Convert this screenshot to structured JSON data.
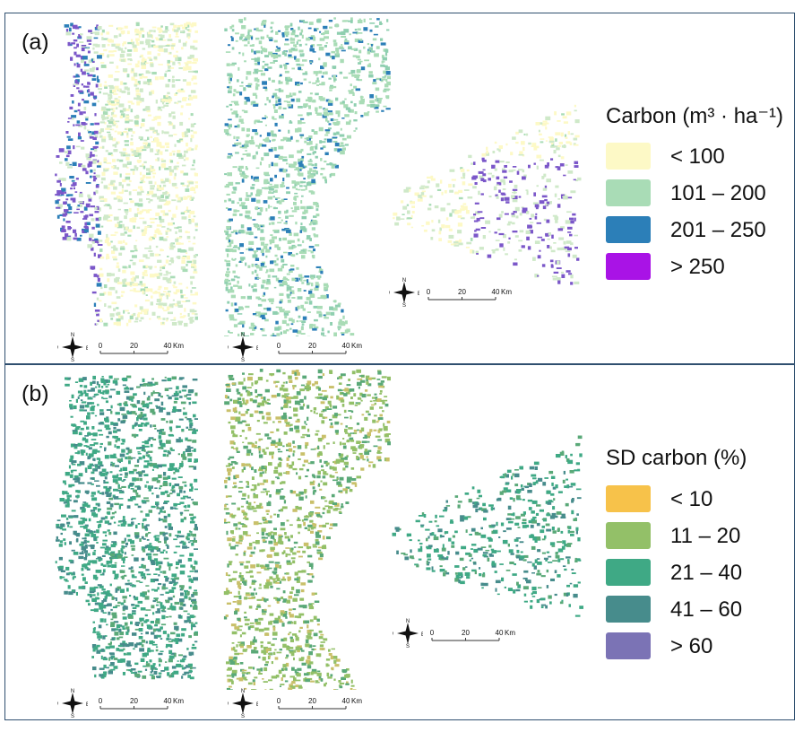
{
  "panels": [
    {
      "label": "(a)",
      "legend": {
        "title": "Carbon (m³ · ha⁻¹)",
        "classes": [
          {
            "label": "< 100",
            "color": "#fdf9c6"
          },
          {
            "label": "101 – 200",
            "color": "#a9dcb6"
          },
          {
            "label": "201 – 250",
            "color": "#2c7fb8"
          },
          {
            "label": "> 250",
            "color": "#a913e6"
          }
        ]
      },
      "map_colors": [
        "#fdf9c6",
        "#cfe9c9",
        "#a9dcb6",
        "#8fcfb0",
        "#2c7fb8",
        "#7b57c9"
      ]
    },
    {
      "label": "(b)",
      "legend": {
        "title": "SD carbon (%)",
        "classes": [
          {
            "label": "< 10",
            "color": "#f7c24a"
          },
          {
            "label": "11 – 20",
            "color": "#93c068"
          },
          {
            "label": "21 – 40",
            "color": "#3fa985"
          },
          {
            "label": "41 – 60",
            "color": "#478c8c"
          },
          {
            "label": "> 60",
            "color": "#7b73b5"
          }
        ]
      },
      "map_colors": [
        "#3fa985",
        "#93c068",
        "#5aa978",
        "#478c8c",
        "#c9c06a",
        "#2f8f6f"
      ]
    }
  ],
  "scale_bar": {
    "ticks": [
      "0",
      "20",
      "40"
    ],
    "unit": "Km"
  },
  "compass": {
    "n": "N",
    "s": "S",
    "e": "E",
    "w": "W"
  }
}
